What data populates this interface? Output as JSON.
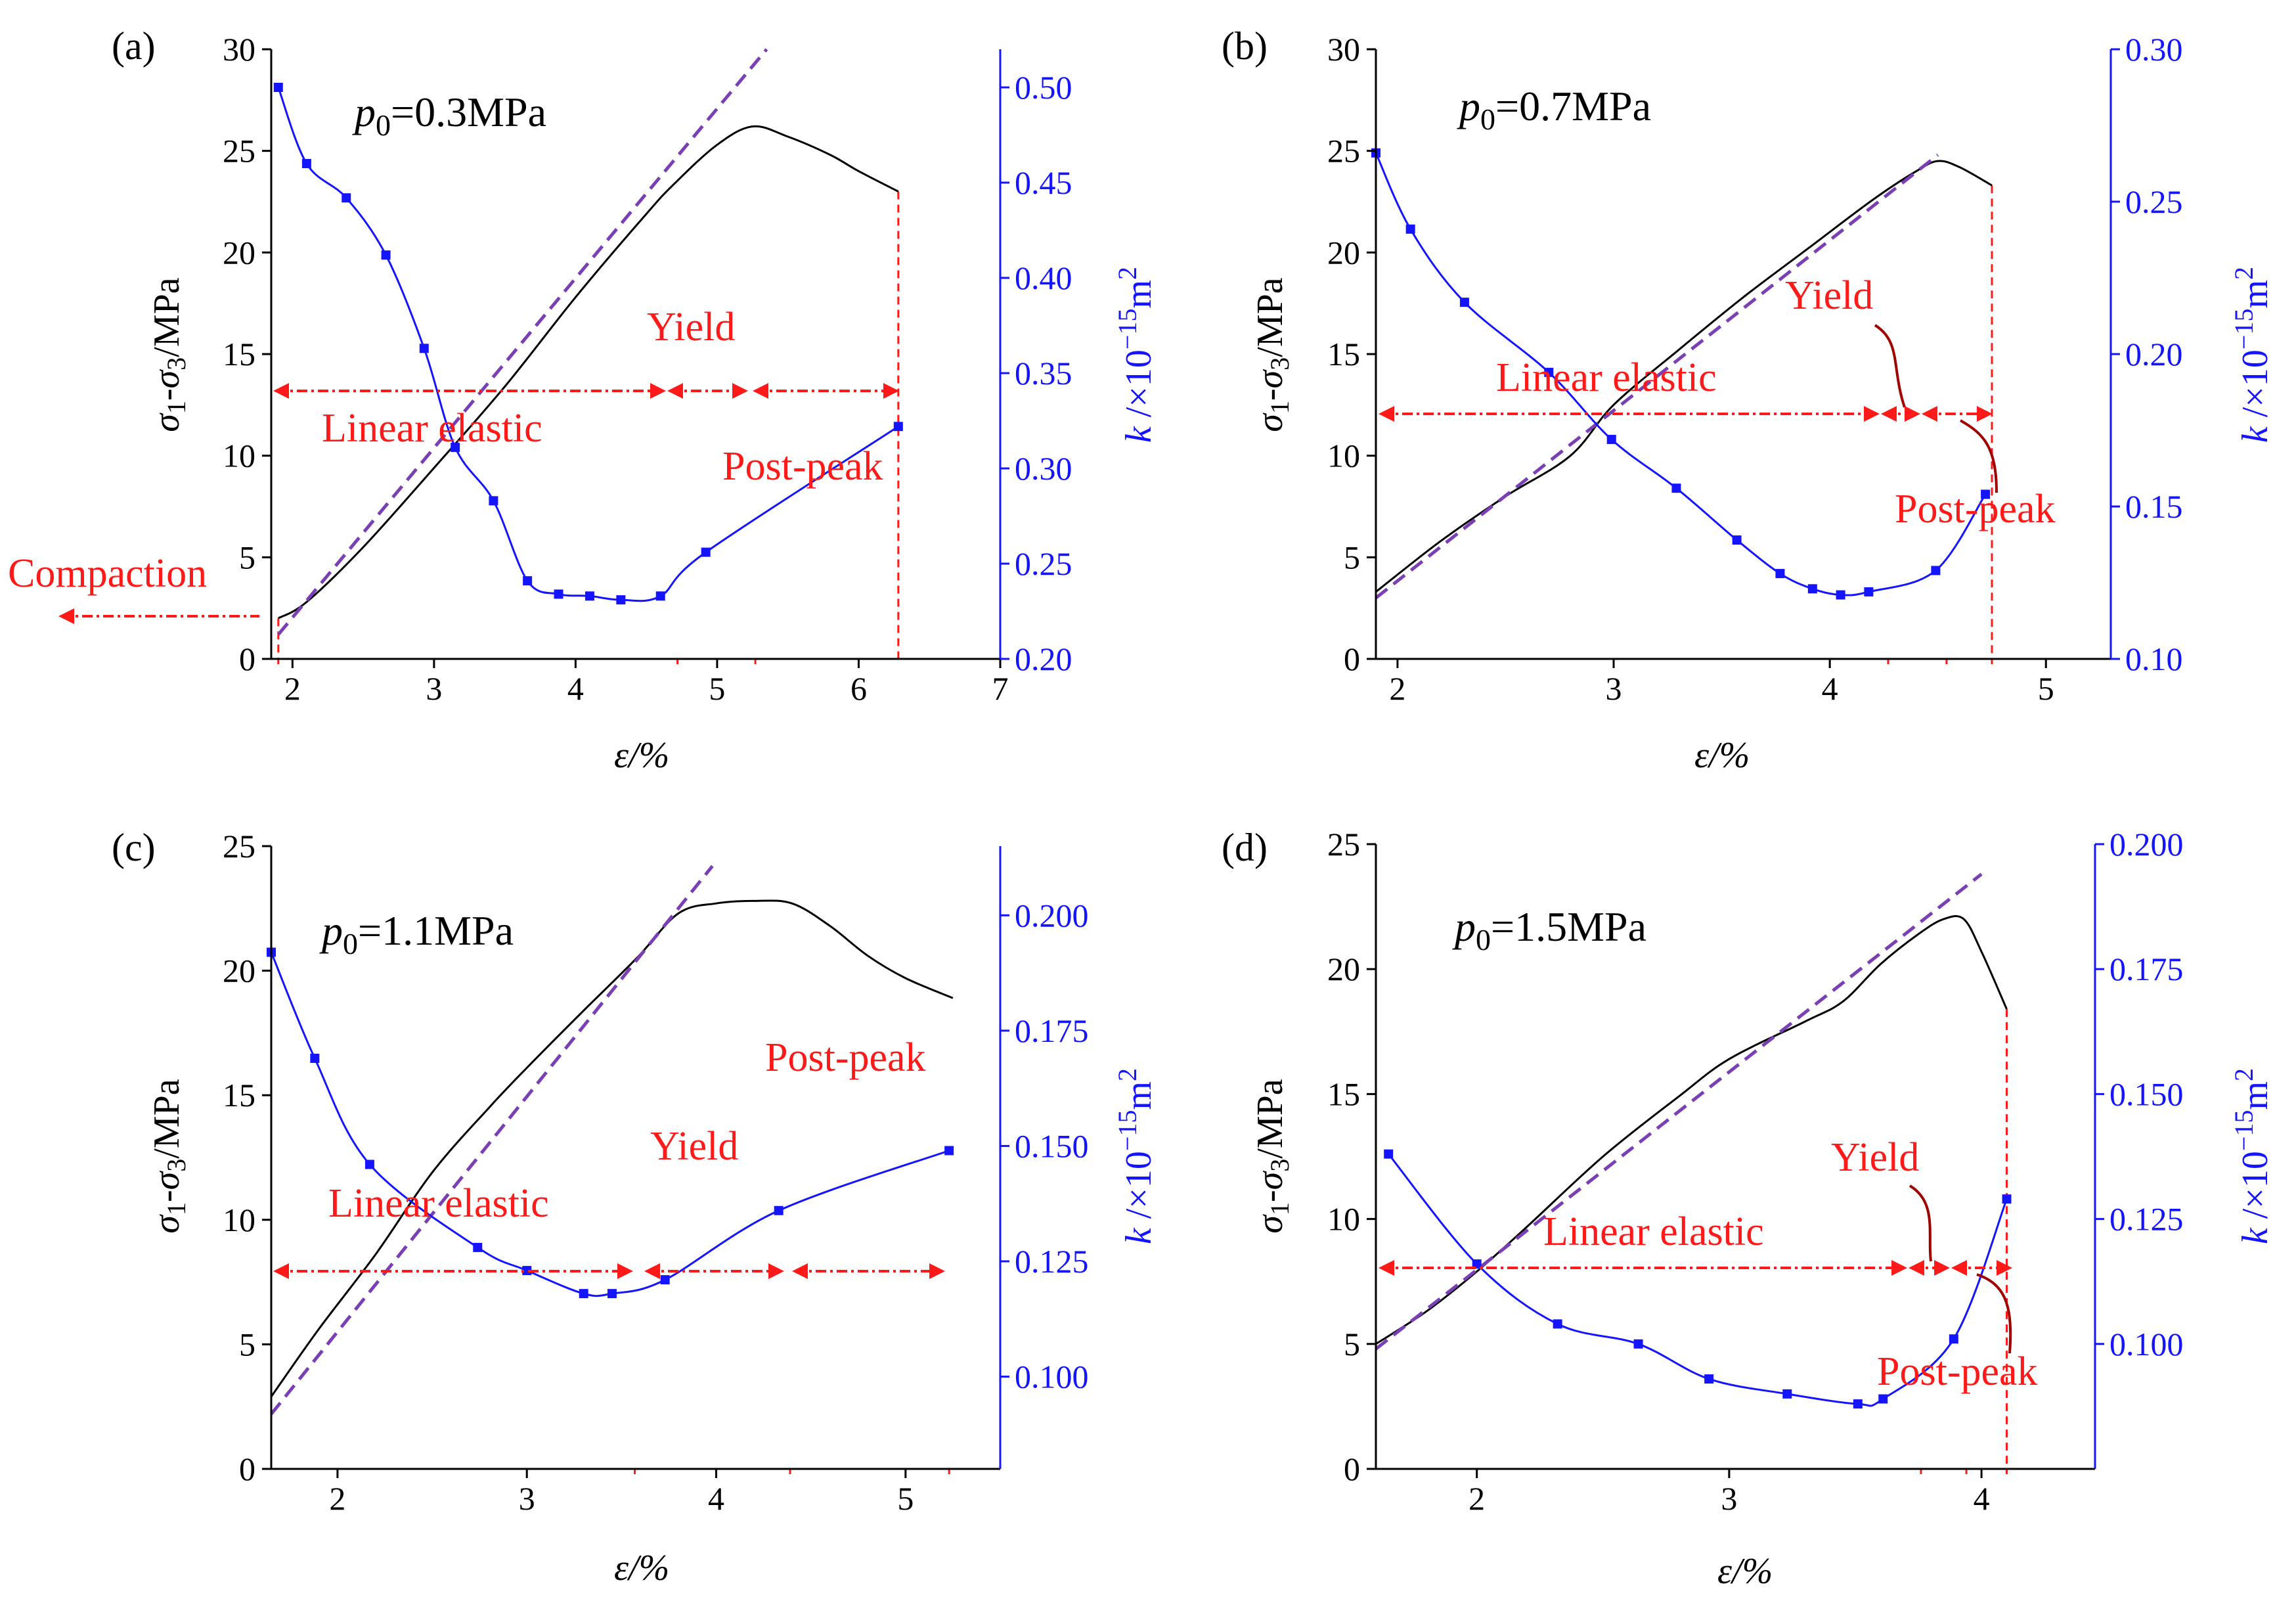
{
  "colors": {
    "stress": "#000000",
    "permeability": "#1414ff",
    "fit": "#7a3fb5",
    "annotation": "#ff1a1a"
  },
  "panels": [
    {
      "label": "(a)",
      "title_symbol": "p",
      "title_sub": "0",
      "title_value": "=0.3MPa",
      "xlabel": "ε/%",
      "ylabel_left": "σ1-σ3/MPa",
      "ylabel_right": "k /×10−15m2",
      "xticks": [
        "2",
        "3",
        "4",
        "5",
        "6",
        "7"
      ],
      "yticks_left": [
        "0",
        "5",
        "10",
        "15",
        "20",
        "25",
        "30"
      ],
      "yticks_right": [
        "0.20",
        "0.25",
        "0.30",
        "0.35",
        "0.40",
        "0.45",
        "0.50"
      ],
      "stages": [
        "Compaction",
        "Linear elastic",
        "Yield",
        "Post-peak"
      ]
    },
    {
      "label": "(b)",
      "title_symbol": "p",
      "title_sub": "0",
      "title_value": "=0.7MPa",
      "xlabel": "ε/%",
      "ylabel_left": "σ1-σ3/MPa",
      "ylabel_right": "k /×10−15m2",
      "xticks": [
        "2",
        "3",
        "4",
        "5"
      ],
      "yticks_left": [
        "0",
        "5",
        "10",
        "15",
        "20",
        "25",
        "30"
      ],
      "yticks_right": [
        "0.10",
        "0.15",
        "0.20",
        "0.25",
        "0.30"
      ],
      "stages": [
        "Linear elastic",
        "Yield",
        "Post-peak"
      ]
    },
    {
      "label": "(c)",
      "title_symbol": "p",
      "title_sub": "0",
      "title_value": "=1.1MPa",
      "xlabel": "ε/%",
      "ylabel_left": "σ1-σ3/MPa",
      "ylabel_right": "k /×10−15m2",
      "xticks": [
        "2",
        "3",
        "4",
        "5"
      ],
      "yticks_left": [
        "0",
        "5",
        "10",
        "15",
        "20",
        "25"
      ],
      "yticks_right": [
        "0.100",
        "0.125",
        "0.150",
        "0.175",
        "0.200"
      ],
      "stages": [
        "Linear elastic",
        "Yield",
        "Post-peak"
      ]
    },
    {
      "label": "(d)",
      "title_symbol": "p",
      "title_sub": "0",
      "title_value": "=1.5MPa",
      "xlabel": "ε/%",
      "ylabel_left": "σ1-σ3/MPa",
      "ylabel_right": "k /×10−15m2",
      "xticks": [
        "2",
        "3",
        "4"
      ],
      "yticks_left": [
        "0",
        "5",
        "10",
        "15",
        "20",
        "25"
      ],
      "yticks_right": [
        "0.100",
        "0.125",
        "0.150",
        "0.175",
        "0.200"
      ],
      "stages": [
        "Linear elastic",
        "Yield",
        "Post-peak"
      ]
    }
  ],
  "chart_data": [
    {
      "panel": "(a)",
      "type": "line",
      "xlim": [
        1.85,
        7.0
      ],
      "ylim_left": [
        0,
        30
      ],
      "ylim_right": [
        0.2,
        0.52
      ],
      "series": [
        {
          "name": "σ1-σ3",
          "axis": "left",
          "x": [
            1.9,
            2.1,
            2.5,
            3.0,
            3.5,
            4.0,
            4.5,
            4.7,
            5.0,
            5.25,
            5.5,
            5.8,
            6.0,
            6.28
          ],
          "values": [
            2.0,
            2.8,
            5.5,
            9.4,
            13.4,
            17.8,
            21.9,
            23.4,
            25.3,
            26.2,
            25.7,
            24.8,
            24.0,
            23.0
          ]
        },
        {
          "name": "linear fit",
          "axis": "left",
          "dashed": true,
          "x": [
            1.9,
            5.35
          ],
          "values": [
            1.2,
            30.0
          ]
        },
        {
          "name": "k",
          "axis": "right",
          "markers": true,
          "x": [
            1.9,
            2.1,
            2.38,
            2.66,
            2.93,
            3.15,
            3.42,
            3.66,
            3.88,
            4.1,
            4.32,
            4.6,
            4.92,
            6.28
          ],
          "values": [
            0.5,
            0.46,
            0.442,
            0.412,
            0.363,
            0.311,
            0.283,
            0.241,
            0.234,
            0.233,
            0.231,
            0.233,
            0.256,
            0.322
          ]
        }
      ],
      "boundaries": [
        1.9,
        4.72,
        5.27,
        6.28
      ]
    },
    {
      "panel": "(b)",
      "type": "line",
      "xlim": [
        1.9,
        5.3
      ],
      "ylim_left": [
        0,
        30
      ],
      "ylim_right": [
        0.1,
        0.3
      ],
      "series": [
        {
          "name": "σ1-σ3",
          "axis": "left",
          "x": [
            1.9,
            2.2,
            2.5,
            2.8,
            3.0,
            3.3,
            3.6,
            3.9,
            4.2,
            4.4,
            4.5,
            4.6,
            4.75
          ],
          "values": [
            3.3,
            5.8,
            8.0,
            10.0,
            12.5,
            15.2,
            17.8,
            20.2,
            22.6,
            24.0,
            24.5,
            24.2,
            23.3
          ]
        },
        {
          "name": "linear fit",
          "axis": "left",
          "dashed": true,
          "x": [
            1.9,
            4.5
          ],
          "values": [
            3.0,
            24.8
          ]
        },
        {
          "name": "k",
          "axis": "right",
          "markers": true,
          "x": [
            1.9,
            2.06,
            2.31,
            2.7,
            2.99,
            3.29,
            3.57,
            3.77,
            3.92,
            4.05,
            4.18,
            4.49,
            4.72
          ],
          "values": [
            0.266,
            0.241,
            0.217,
            0.194,
            0.172,
            0.156,
            0.139,
            0.128,
            0.123,
            0.121,
            0.122,
            0.129,
            0.154
          ]
        }
      ],
      "boundaries": [
        4.27,
        4.54,
        4.75
      ]
    },
    {
      "panel": "(c)",
      "type": "line",
      "xlim": [
        1.65,
        5.5
      ],
      "ylim_left": [
        0,
        25
      ],
      "ylim_right": [
        0.08,
        0.215
      ],
      "series": [
        {
          "name": "σ1-σ3",
          "axis": "left",
          "x": [
            1.65,
            1.9,
            2.2,
            2.5,
            2.8,
            3.0,
            3.3,
            3.58,
            3.8,
            4.0,
            4.2,
            4.4,
            4.6,
            4.8,
            5.0,
            5.25
          ],
          "values": [
            2.9,
            5.6,
            8.6,
            11.9,
            14.5,
            16.1,
            18.4,
            20.5,
            22.3,
            22.7,
            22.8,
            22.7,
            21.8,
            20.6,
            19.7,
            18.9
          ]
        },
        {
          "name": "linear fit",
          "axis": "left",
          "dashed": true,
          "x": [
            1.65,
            3.98
          ],
          "values": [
            2.2,
            24.2
          ]
        },
        {
          "name": "k",
          "axis": "right",
          "markers": true,
          "x": [
            1.65,
            1.88,
            2.17,
            2.74,
            3.0,
            3.3,
            3.45,
            3.73,
            4.33,
            5.23
          ],
          "values": [
            0.192,
            0.169,
            0.146,
            0.128,
            0.123,
            0.118,
            0.118,
            0.121,
            0.136,
            0.149
          ]
        }
      ],
      "boundaries": [
        3.57,
        4.39,
        5.23
      ]
    },
    {
      "panel": "(d)",
      "type": "line",
      "xlim": [
        1.6,
        4.45
      ],
      "ylim_left": [
        0,
        25
      ],
      "ylim_right": [
        0.075,
        0.2
      ],
      "series": [
        {
          "name": "σ1-σ3",
          "axis": "left",
          "x": [
            1.6,
            1.8,
            2.0,
            2.2,
            2.5,
            2.8,
            3.0,
            3.3,
            3.45,
            3.6,
            3.75,
            3.85,
            3.93,
            4.0,
            4.1
          ],
          "values": [
            5.0,
            6.3,
            7.9,
            9.7,
            12.5,
            14.9,
            16.4,
            17.9,
            18.7,
            20.2,
            21.4,
            22.0,
            22.0,
            20.7,
            18.4
          ]
        },
        {
          "name": "linear fit",
          "axis": "left",
          "dashed": true,
          "x": [
            1.6,
            4.0
          ],
          "values": [
            4.8,
            23.8
          ]
        },
        {
          "name": "k",
          "axis": "right",
          "markers": true,
          "x": [
            1.65,
            2.0,
            2.32,
            2.64,
            2.92,
            3.23,
            3.51,
            3.61,
            3.89,
            4.1
          ],
          "values": [
            0.138,
            0.116,
            0.104,
            0.1,
            0.093,
            0.09,
            0.088,
            0.089,
            0.101,
            0.129
          ]
        }
      ],
      "boundaries": [
        3.76,
        3.94,
        4.1
      ]
    }
  ]
}
